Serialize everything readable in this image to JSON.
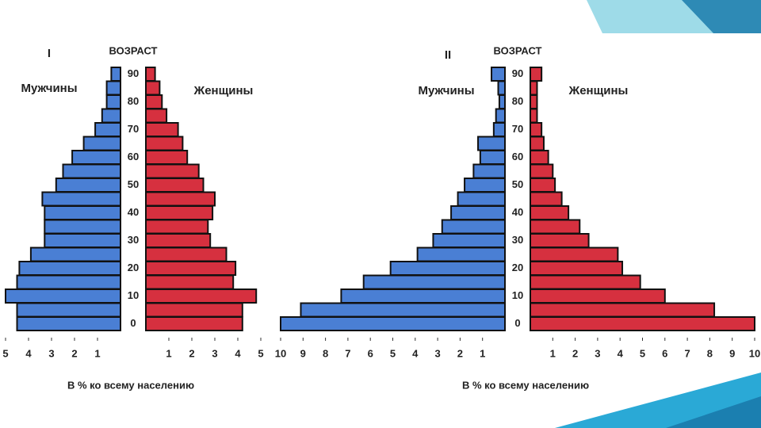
{
  "chart_data": [
    {
      "type": "pyramid",
      "title": "I",
      "age_label": "ВОЗРАСТ",
      "x_label": "В % ко всему населению",
      "categories": [
        "0",
        null,
        "10",
        null,
        "20",
        null,
        "30",
        null,
        "40",
        null,
        "50",
        null,
        "60",
        null,
        "70",
        null,
        "80",
        null,
        "90"
      ],
      "xlim": [
        0,
        5
      ],
      "xticks": [
        1,
        2,
        3,
        4,
        5
      ],
      "series": [
        {
          "name": "Мужчины",
          "color": "#4a7fd4",
          "side": "left",
          "values": [
            4.5,
            4.5,
            5.0,
            4.5,
            4.4,
            3.9,
            3.3,
            3.3,
            3.3,
            3.4,
            2.8,
            2.5,
            2.1,
            1.6,
            1.1,
            0.8,
            0.6,
            0.6,
            0.4
          ]
        },
        {
          "name": "Женщины",
          "color": "#d6303f",
          "side": "right",
          "values": [
            4.2,
            4.2,
            4.8,
            3.8,
            3.9,
            3.5,
            2.8,
            2.7,
            2.9,
            3.0,
            2.5,
            2.3,
            1.8,
            1.6,
            1.4,
            0.9,
            0.7,
            0.6,
            0.4
          ]
        }
      ]
    },
    {
      "type": "pyramid",
      "title": "II",
      "age_label": "ВОЗРАСТ",
      "x_label": "В % ко всему населению",
      "categories": [
        "0",
        null,
        "10",
        null,
        "20",
        null,
        "30",
        null,
        "40",
        null,
        "50",
        null,
        "60",
        null,
        "70",
        null,
        "80",
        null,
        "90"
      ],
      "xlim": [
        0,
        10
      ],
      "xticks": [
        1,
        2,
        3,
        4,
        5,
        6,
        7,
        8,
        9,
        10
      ],
      "series": [
        {
          "name": "Мужчины",
          "color": "#4a7fd4",
          "side": "left",
          "values": [
            10,
            9.1,
            7.3,
            6.3,
            5.1,
            3.9,
            3.2,
            2.8,
            2.4,
            2.1,
            1.8,
            1.4,
            1.1,
            1.2,
            0.5,
            0.4,
            0.25,
            0.3,
            0.6
          ]
        },
        {
          "name": "Женщины",
          "color": "#d6303f",
          "side": "right",
          "values": [
            10,
            8.2,
            6.0,
            4.9,
            4.1,
            3.9,
            2.6,
            2.2,
            1.7,
            1.4,
            1.1,
            1.0,
            0.8,
            0.6,
            0.5,
            0.3,
            0.3,
            0.3,
            0.5
          ]
        }
      ]
    }
  ]
}
